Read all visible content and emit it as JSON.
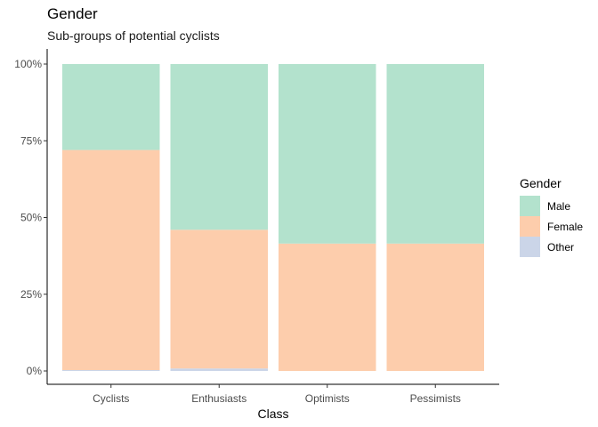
{
  "chart_data": {
    "type": "bar",
    "stacked": "percent",
    "title": "Gender",
    "subtitle": "Sub-groups of potential cyclists",
    "xlabel": "Class",
    "ylabel": "",
    "categories": [
      "Cyclists",
      "Enthusiasts",
      "Optimists",
      "Pessimists"
    ],
    "yticks": [
      "0%",
      "25%",
      "50%",
      "75%",
      "100%"
    ],
    "ylim": [
      0,
      1
    ],
    "series": [
      {
        "name": "Male",
        "color": "#b3e2cd",
        "values": [
          0.28,
          0.54,
          0.585,
          0.585
        ]
      },
      {
        "name": "Female",
        "color": "#fdcdac",
        "values": [
          0.717,
          0.452,
          0.415,
          0.415
        ]
      },
      {
        "name": "Other",
        "color": "#cbd5e8",
        "values": [
          0.003,
          0.008,
          0.0,
          0.0
        ]
      }
    ],
    "legend": {
      "title": "Gender",
      "position": "right"
    },
    "grid": false
  }
}
